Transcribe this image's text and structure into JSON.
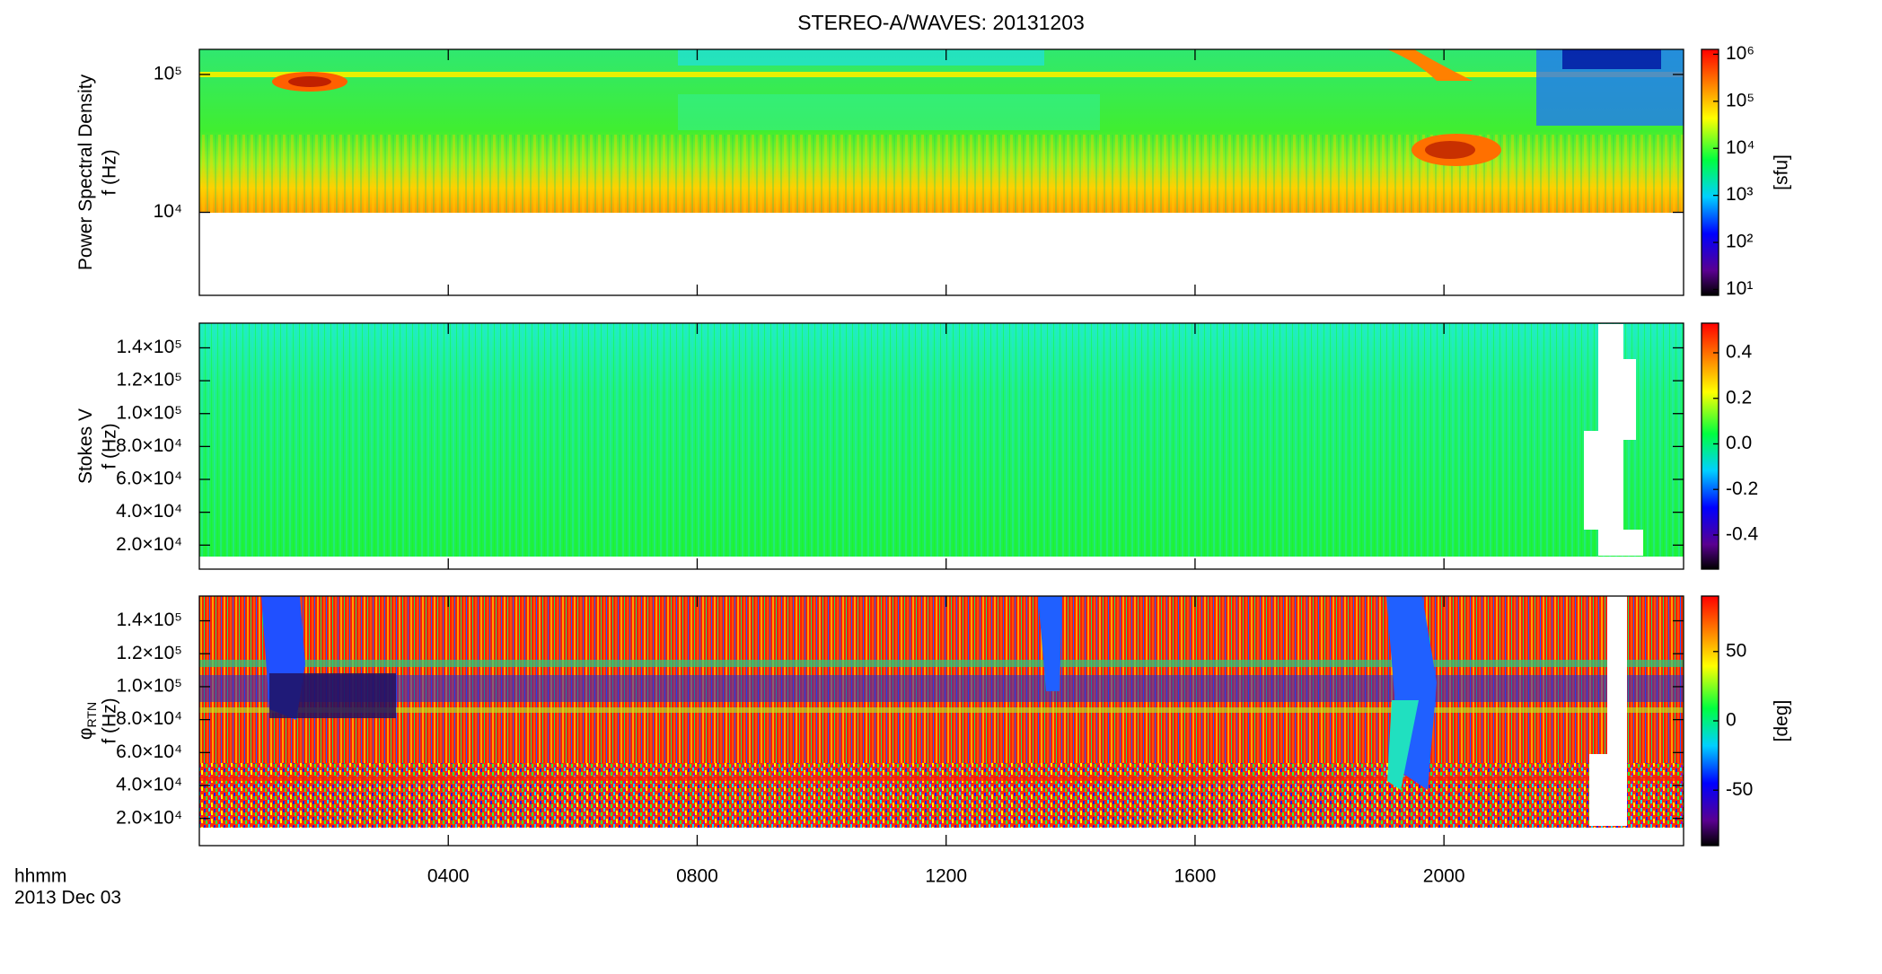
{
  "chart_data": {
    "type": "spectrogram",
    "title": "STEREO-A/WAVES: 20131203",
    "xlabel": "hhmm",
    "date_label": "2013 Dec 03",
    "xlim": [
      0,
      23.85
    ],
    "xticks": [
      {
        "value": 4,
        "label": "0400"
      },
      {
        "value": 8,
        "label": "0800"
      },
      {
        "value": 12,
        "label": "1200"
      },
      {
        "value": 16,
        "label": "1600"
      },
      {
        "value": 20,
        "label": "2000"
      }
    ],
    "panels": [
      {
        "ylabel": "Power Spectral Density",
        "ylabel_sub": null,
        "ylabel2": "f (Hz)",
        "yscale": "log",
        "ylim": [
          2500,
          152000
        ],
        "yticks": [
          {
            "value": 10000,
            "label": "10⁴"
          },
          {
            "value": 100000,
            "label": "10⁵"
          }
        ],
        "colorbar": {
          "scale": "log",
          "clim": [
            7.5,
            1270000
          ],
          "label": "[sfu]",
          "ticks": [
            {
              "value": 10,
              "label": "10¹"
            },
            {
              "value": 100,
              "label": "10²"
            },
            {
              "value": 1000,
              "label": "10³"
            },
            {
              "value": 10000,
              "label": "10⁴"
            },
            {
              "value": 100000,
              "label": "10⁵"
            },
            {
              "value": 1000000,
              "label": "10⁶"
            }
          ]
        }
      },
      {
        "ylabel": "Stokes V",
        "ylabel_sub": null,
        "ylabel2": "f (Hz)",
        "yscale": "linear",
        "ylim": [
          5400,
          155000
        ],
        "yticks": [
          {
            "value": 20000,
            "label": "2.0×10⁴"
          },
          {
            "value": 40000,
            "label": "4.0×10⁴"
          },
          {
            "value": 60000,
            "label": "6.0×10⁴"
          },
          {
            "value": 80000,
            "label": "8.0×10⁴"
          },
          {
            "value": 100000,
            "label": "1.0×10⁵"
          },
          {
            "value": 120000,
            "label": "1.2×10⁵"
          },
          {
            "value": 140000,
            "label": "1.4×10⁵"
          }
        ],
        "colorbar": {
          "scale": "linear",
          "clim": [
            -0.55,
            0.53
          ],
          "label": null,
          "ticks": [
            {
              "value": -0.4,
              "label": "-0.4"
            },
            {
              "value": -0.2,
              "label": "-0.2"
            },
            {
              "value": 0,
              "label": "0.0"
            },
            {
              "value": 0.2,
              "label": "0.2"
            },
            {
              "value": 0.4,
              "label": "0.4"
            }
          ]
        }
      },
      {
        "ylabel": "φ",
        "ylabel_sub": "RTN",
        "ylabel2": "f (Hz)",
        "yscale": "linear",
        "ylim": [
          3500,
          155000
        ],
        "yticks": [
          {
            "value": 20000,
            "label": "2.0×10⁴"
          },
          {
            "value": 40000,
            "label": "4.0×10⁴"
          },
          {
            "value": 60000,
            "label": "6.0×10⁴"
          },
          {
            "value": 80000,
            "label": "8.0×10⁴"
          },
          {
            "value": 100000,
            "label": "1.0×10⁵"
          },
          {
            "value": 120000,
            "label": "1.2×10⁵"
          },
          {
            "value": 140000,
            "label": "1.4×10⁵"
          }
        ],
        "colorbar": {
          "scale": "linear",
          "clim": [
            -90,
            90
          ],
          "label": "[deg]",
          "ticks": [
            -50,
            0,
            50
          ]
        }
      }
    ]
  }
}
